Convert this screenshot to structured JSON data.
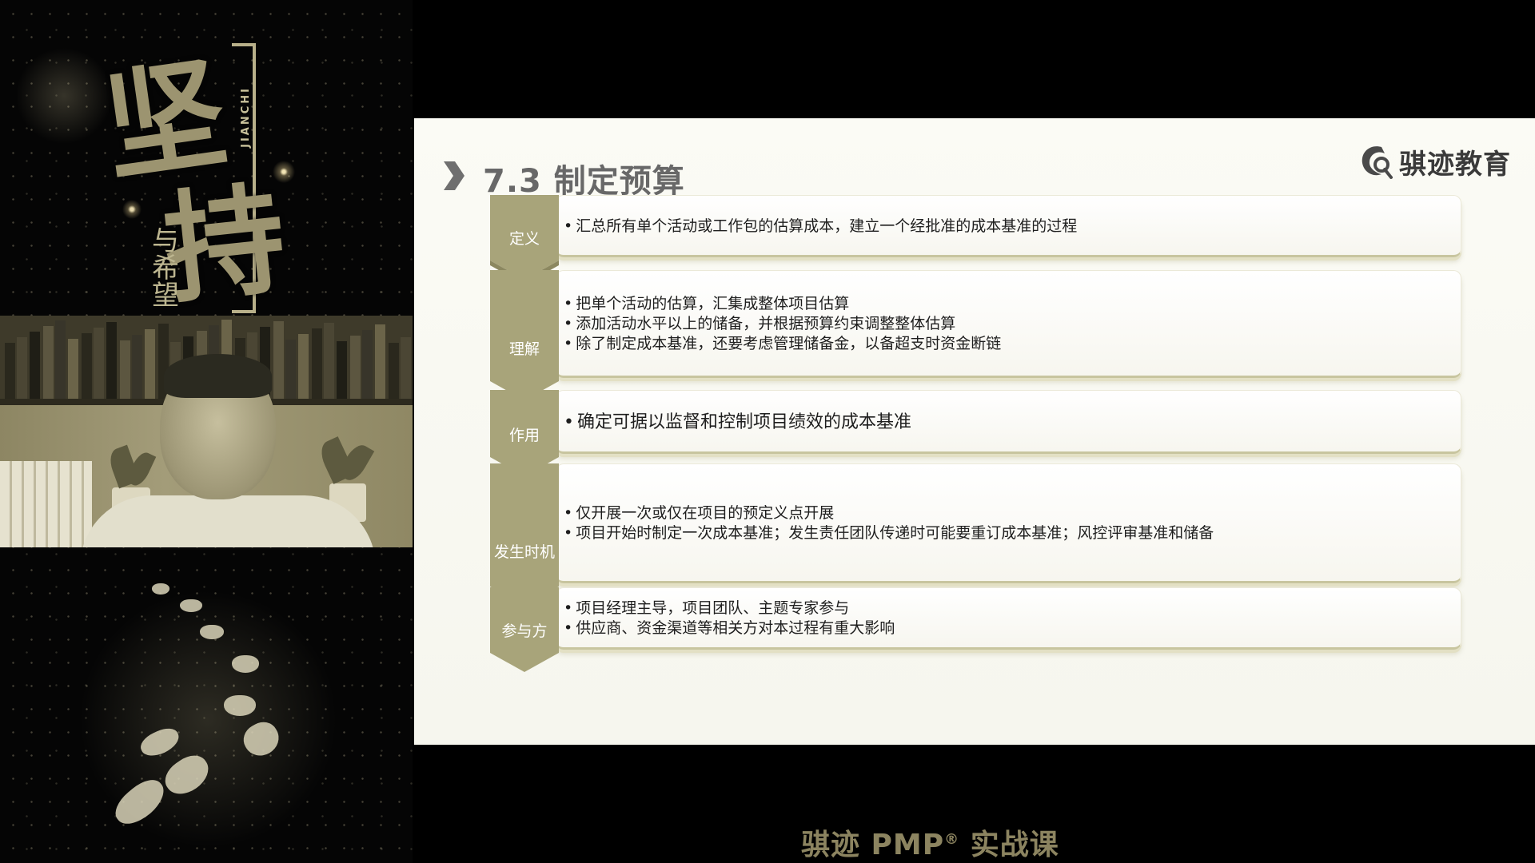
{
  "poster": {
    "char_top": "坚",
    "char_bottom": "持",
    "subtitle": "与希望",
    "pinyin": "JIANCHI"
  },
  "slide": {
    "title": "7.3 制定预算",
    "brand_name": "骐迹教育",
    "rows": [
      {
        "label": "定义",
        "items": [
          "汇总所有单个活动或工作包的估算成本，建立一个经批准的成本基准的过程"
        ]
      },
      {
        "label": "理解",
        "items": [
          "把单个活动的估算，汇集成整体项目估算",
          "添加活动水平以上的储备，并根据预算约束调整整体估算",
          "除了制定成本基准，还要考虑管理储备金，以备超支时资金断链"
        ]
      },
      {
        "label": "作用",
        "items": [
          "确定可据以监督和控制项目绩效的成本基准"
        ]
      },
      {
        "label": "发生时机",
        "items": [
          "仅开展一次或仅在项目的预定义点开展",
          "项目开始时制定一次成本基准；发生责任团队传递时可能要重订成本基准；风控评审基准和储备"
        ]
      },
      {
        "label": "参与方",
        "items": [
          "项目经理主导，项目团队、主题专家参与",
          "供应商、资金渠道等相关方对本过程有重大影响"
        ]
      }
    ]
  },
  "caption": {
    "text": "骐迹 PMP",
    "registered": "®",
    "suffix": "实战课"
  },
  "colors": {
    "tab": "#a8a47a",
    "tab_dark": "#8c8860",
    "caption": "#8c8460"
  },
  "icons": [
    "chevron-right-icon",
    "brand-logo-icon",
    "tab-chevron-icon"
  ]
}
